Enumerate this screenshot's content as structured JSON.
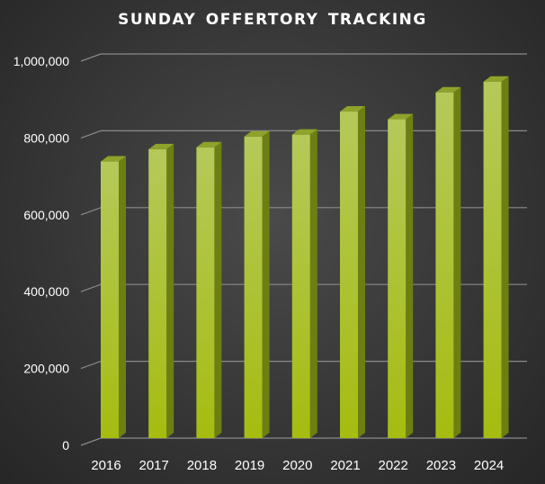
{
  "chart_data": {
    "type": "bar",
    "title": "SUNDAY OFFERTORY TRACKING",
    "xlabel": "",
    "ylabel": "",
    "categories": [
      "2016",
      "2017",
      "2018",
      "2019",
      "2020",
      "2021",
      "2022",
      "2023",
      "2024"
    ],
    "values": [
      720000,
      752000,
      757000,
      785000,
      790000,
      850000,
      830000,
      900000,
      928000
    ],
    "ylim": [
      0,
      1000000
    ],
    "yticks": [
      0,
      200000,
      400000,
      600000,
      800000,
      1000000
    ],
    "ytick_labels": [
      "0",
      "200,000",
      "400,000",
      "600,000",
      "800,000",
      "1,000,000"
    ],
    "grid": true,
    "legend": "none",
    "colors": {
      "bar_front_light": "#b5c95a",
      "bar_front_dark": "#a6bc10",
      "bar_side": "#6d7f13",
      "bar_top": "#8ea32a",
      "gridline": "#8a8a8a",
      "text": "#ffffff"
    }
  }
}
